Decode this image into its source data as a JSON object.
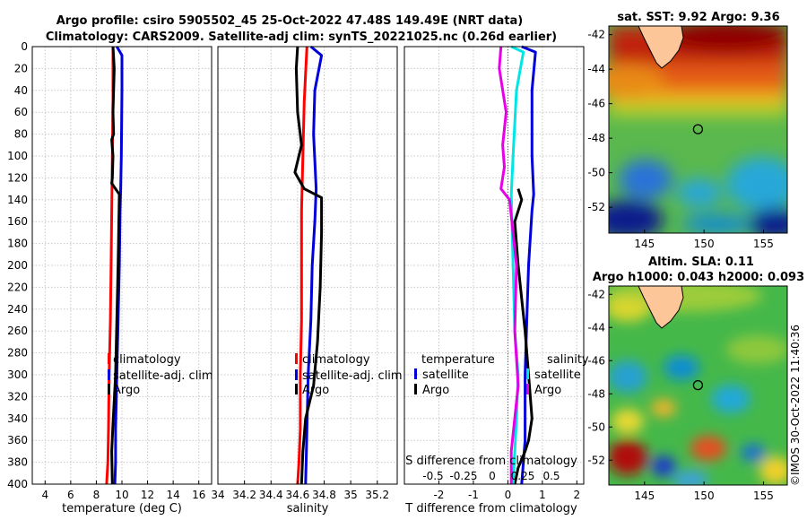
{
  "titles": {
    "line1": "Argo profile: csiro 5905502_45 25-Oct-2022 47.48S 149.49E (NRT data)",
    "line2": "Climatology: CARS2009. Satellite-adj clim: synTS_20221025.nc (0.26d earlier)",
    "sst": "sat. SST: 9.92 Argo: 9.36",
    "sla1": "Altim. SLA: 0.11",
    "sla2": "Argo h1000: 0.043 h2000: 0.093"
  },
  "watermark": "©IMOS 30-Oct-2022 11:40:36",
  "colors": {
    "climatology": "#ff0000",
    "satellite": "#0000dd",
    "argo": "#000000",
    "sat_s": "#00e6e6",
    "argo_s": "#e600e6"
  },
  "chart_data": [
    {
      "type": "line",
      "id": "temperature",
      "xlabel": "temperature (deg C)",
      "ylabel": "",
      "xlim": [
        3,
        17
      ],
      "ylim": [
        0,
        400
      ],
      "yreversed": true,
      "xticks": [
        4,
        6,
        8,
        10,
        12,
        14,
        16
      ],
      "xticklabels": [
        "4",
        "6",
        "8",
        "10",
        "12",
        "14",
        "16"
      ],
      "yticks": [
        0,
        20,
        40,
        60,
        80,
        100,
        120,
        140,
        160,
        180,
        200,
        220,
        240,
        260,
        280,
        300,
        320,
        340,
        360,
        380,
        400
      ],
      "legend": [
        "climatology",
        "satellite-adj. clim",
        "Argo"
      ],
      "series": [
        {
          "name": "climatology",
          "color": "#ff0000",
          "x": [
            9.3,
            9.3,
            9.25,
            9.2,
            9.15,
            9.1,
            9.0,
            8.95,
            8.9,
            8.8
          ],
          "y": [
            0,
            50,
            100,
            150,
            200,
            250,
            300,
            350,
            380,
            400
          ]
        },
        {
          "name": "satellite-adj. clim",
          "color": "#0000dd",
          "x": [
            9.6,
            10.0,
            10.0,
            9.95,
            9.9,
            9.85,
            9.8,
            9.7,
            9.6,
            9.5,
            9.5,
            9.45
          ],
          "y": [
            0,
            8,
            40,
            100,
            130,
            150,
            200,
            250,
            300,
            350,
            380,
            400
          ]
        },
        {
          "name": "Argo",
          "color": "#000000",
          "x": [
            9.3,
            9.4,
            9.3,
            9.35,
            9.2,
            9.3,
            9.25,
            9.2,
            9.8,
            9.7,
            9.6,
            9.5,
            9.3,
            9.2,
            9.25
          ],
          "y": [
            0,
            20,
            60,
            80,
            85,
            100,
            120,
            125,
            135,
            200,
            250,
            300,
            345,
            370,
            400
          ]
        }
      ]
    },
    {
      "type": "line",
      "id": "salinity",
      "xlabel": "salinity",
      "ylabel": "",
      "xlim": [
        34,
        35.35
      ],
      "ylim": [
        0,
        400
      ],
      "yreversed": true,
      "xticks": [
        34,
        34.2,
        34.4,
        34.6,
        34.8,
        35,
        35.2
      ],
      "xticklabels": [
        "34",
        "34.2",
        "34.4",
        "34.6",
        "34.8",
        "35",
        "35.2"
      ],
      "legend": [
        "climatology",
        "satellite-adj. clim",
        "Argo"
      ],
      "series": [
        {
          "name": "climatology",
          "color": "#ff0000",
          "x": [
            34.67,
            34.65,
            34.64,
            34.63,
            34.63,
            34.63,
            34.62,
            34.62,
            34.61,
            34.6
          ],
          "y": [
            0,
            50,
            100,
            150,
            200,
            250,
            300,
            350,
            380,
            400
          ]
        },
        {
          "name": "satellite-adj. clim",
          "color": "#0000dd",
          "x": [
            34.7,
            34.78,
            34.73,
            34.72,
            34.74,
            34.73,
            34.71,
            34.7,
            34.68,
            34.67,
            34.66
          ],
          "y": [
            0,
            8,
            40,
            80,
            130,
            160,
            200,
            250,
            300,
            350,
            400
          ]
        },
        {
          "name": "Argo",
          "color": "#000000",
          "x": [
            34.6,
            34.59,
            34.6,
            34.63,
            34.58,
            34.65,
            34.78,
            34.78,
            34.77,
            34.75,
            34.72,
            34.66,
            34.64,
            34.63
          ],
          "y": [
            0,
            20,
            60,
            90,
            115,
            130,
            138,
            170,
            220,
            270,
            310,
            340,
            370,
            400
          ]
        }
      ]
    },
    {
      "type": "line",
      "id": "difference",
      "xlabel": "T difference from climatology",
      "ylabel": "",
      "xlim": [
        -3,
        2.2
      ],
      "ylim": [
        0,
        400
      ],
      "yreversed": true,
      "xticks": [
        -2,
        -1,
        0,
        1,
        2
      ],
      "xticklabels": [
        "-2",
        "-1",
        "0",
        "1",
        "2"
      ],
      "top_axis_label": "S difference from climatology",
      "top_ticklabels": [
        "-0.5",
        "-0.25",
        "0",
        "0.25",
        "0.5"
      ],
      "legend_titles": [
        "temperature",
        "salinity"
      ],
      "legend": [
        "satellite",
        "Argo",
        "satellite",
        "Argo"
      ],
      "series": [
        {
          "name": "temperature satellite",
          "color": "#0000dd",
          "x": [
            0.4,
            0.8,
            0.7,
            0.7,
            0.75,
            0.7,
            0.6,
            0.55,
            0.5,
            0.5,
            0.4
          ],
          "y": [
            0,
            5,
            40,
            100,
            135,
            150,
            200,
            250,
            300,
            360,
            400
          ]
        },
        {
          "name": "temperature Argo",
          "color": "#000000",
          "x": [
            0.3,
            0.4,
            0.2,
            0.3,
            0.5,
            0.6,
            0.7,
            0.6,
            0.5,
            0.3,
            0.2
          ],
          "y": [
            130,
            140,
            160,
            200,
            260,
            300,
            340,
            360,
            370,
            385,
            400
          ]
        },
        {
          "name": "salinity satellite",
          "color": "#00e6e6",
          "x": [
            0.1,
            0.45,
            0.25,
            0.15,
            0.1,
            0.15,
            0.2,
            0.3,
            0.25,
            0.2,
            0.15
          ],
          "y": [
            0,
            5,
            40,
            100,
            135,
            200,
            260,
            300,
            340,
            370,
            400
          ]
        },
        {
          "name": "salinity Argo",
          "color": "#e600e6",
          "x": [
            -0.2,
            -0.25,
            -0.05,
            -0.15,
            -0.1,
            -0.2,
            0.05,
            0.25,
            0.2,
            0.3,
            0.1,
            0.1
          ],
          "y": [
            0,
            20,
            60,
            90,
            110,
            130,
            140,
            200,
            260,
            310,
            370,
            400
          ]
        }
      ]
    },
    {
      "type": "heatmap",
      "id": "sst_map",
      "title": "sat. SST: 9.92 Argo: 9.36",
      "xlim": [
        142,
        157
      ],
      "ylim": [
        -53.5,
        -41.5
      ],
      "xticks": [
        145,
        150,
        155
      ],
      "yticks": [
        -42,
        -44,
        -46,
        -48,
        -50,
        -52
      ],
      "marker": {
        "lon": 149.49,
        "lat": -47.48
      }
    },
    {
      "type": "heatmap",
      "id": "sla_map",
      "title": "Altim. SLA: 0.11",
      "subtitle": "Argo h1000: 0.043 h2000: 0.093",
      "xlim": [
        142,
        157
      ],
      "ylim": [
        -53.5,
        -41.5
      ],
      "xticks": [
        145,
        150,
        155
      ],
      "yticks": [
        -42,
        -44,
        -46,
        -48,
        -50,
        -52
      ],
      "marker": {
        "lon": 149.49,
        "lat": -47.48
      }
    }
  ]
}
